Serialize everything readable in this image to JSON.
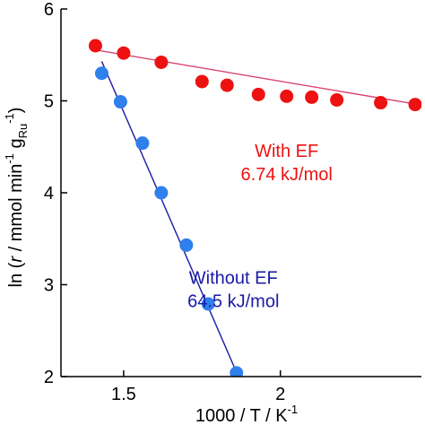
{
  "chart_data": {
    "type": "scatter",
    "xlabel": {
      "main": "1000 / T / K",
      "sup": "-1"
    },
    "ylabel": {
      "prefix": "ln (",
      "italic": "r",
      "mid": " / mmol min",
      "sup1": "-1",
      "space": " g",
      "sub": "Ru",
      "sup2": "-1",
      "suffix": ")"
    },
    "xlim": [
      1.3,
      2.45
    ],
    "ylim": [
      2,
      6
    ],
    "xticks": [
      1.5,
      2
    ],
    "xtick_labels": [
      "1.5",
      "2"
    ],
    "yticks": [
      2,
      3,
      4,
      5,
      6
    ],
    "ytick_labels": [
      "2",
      "3",
      "4",
      "5",
      "6"
    ],
    "grid": false,
    "series": [
      {
        "name": "With EF",
        "color": "#ee1111",
        "line_color": "#d8446e",
        "x": [
          1.41,
          1.5,
          1.62,
          1.75,
          1.83,
          1.93,
          2.02,
          2.1,
          2.18,
          2.32,
          2.43
        ],
        "y": [
          5.6,
          5.52,
          5.42,
          5.21,
          5.17,
          5.07,
          5.05,
          5.04,
          5.01,
          4.98,
          4.96
        ],
        "fit_x": [
          1.4,
          2.44
        ],
        "fit_y": [
          5.56,
          4.96
        ]
      },
      {
        "name": "Without EF",
        "color": "#2f7fec",
        "line_color": "#1a1aa6",
        "x": [
          1.43,
          1.49,
          1.56,
          1.62,
          1.7,
          1.77,
          1.86
        ],
        "y": [
          5.3,
          4.99,
          4.54,
          4.0,
          3.43,
          2.79,
          2.04
        ],
        "fit_x": [
          1.43,
          1.866
        ],
        "fit_y": [
          5.43,
          2.0
        ]
      }
    ],
    "annotations": [
      {
        "series": 0,
        "lines": [
          "With EF",
          "6.74 kJ/mol"
        ],
        "color": "#ee1111",
        "x": 2.02,
        "y": 4.39
      },
      {
        "series": 1,
        "lines": [
          "Without EF",
          "64.5 kJ/mol"
        ],
        "color": "#1a1aa6",
        "x": 1.85,
        "y": 3.01
      }
    ]
  }
}
